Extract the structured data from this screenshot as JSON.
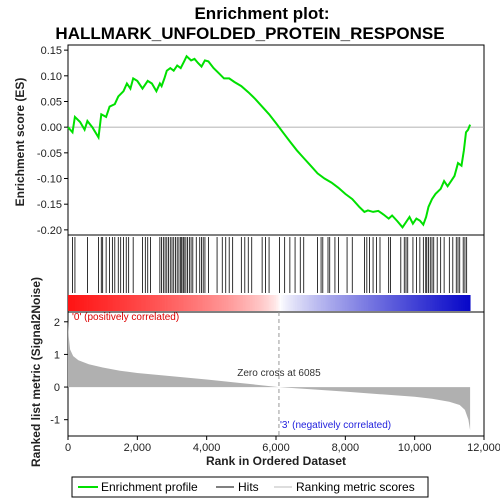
{
  "chart_data": {
    "type": "line",
    "title_line1": "Enrichment plot:",
    "title_line2": "HALLMARK_UNFOLDED_PROTEIN_RESPONSE",
    "es_ylabel": "Enrichment score (ES)",
    "rank_ylabel": "Ranked list metric (Signal2Noise)",
    "xlabel": "Rank in Ordered Dataset",
    "xlim": [
      0,
      12000
    ],
    "x_ticks": [
      0,
      2000,
      4000,
      6000,
      8000,
      10000,
      12000
    ],
    "x_tick_labels": [
      "0",
      "2,000",
      "4,000",
      "6,000",
      "8,000",
      "10,000",
      "12,000"
    ],
    "es_ylim": [
      -0.21,
      0.16
    ],
    "es_ticks": [
      0.15,
      0.1,
      0.05,
      0.0,
      -0.05,
      -0.1,
      -0.15,
      -0.2
    ],
    "es_tick_labels": [
      "0.15",
      "0.10",
      "0.05",
      "0.00",
      "-0.05",
      "-0.10",
      "-0.15",
      "-0.20"
    ],
    "rank_ylim": [
      -1.5,
      2.3
    ],
    "rank_ticks": [
      2,
      1,
      0,
      -1
    ],
    "rank_tick_labels": [
      "2",
      "1",
      "0",
      "-1"
    ],
    "n_genes": 11600,
    "zero_cross_rank": 6085,
    "zero_cross_label": "Zero cross at 6085",
    "pos_label": "'0' (positively correlated)",
    "neg_label": "'3' (negatively correlated)",
    "colors": {
      "es_line": "#00e000",
      "pos_text": "#dd0000",
      "neg_text": "#2222dd",
      "metric_fill": "#b0b0b0",
      "hit_line": "#000000"
    },
    "enrichment_profile": [
      [
        0,
        0.0
      ],
      [
        130,
        -0.01
      ],
      [
        200,
        0.02
      ],
      [
        350,
        0.01
      ],
      [
        480,
        -0.005
      ],
      [
        560,
        0.012
      ],
      [
        700,
        0.0
      ],
      [
        880,
        -0.02
      ],
      [
        960,
        0.025
      ],
      [
        1100,
        0.02
      ],
      [
        1200,
        0.04
      ],
      [
        1350,
        0.045
      ],
      [
        1450,
        0.06
      ],
      [
        1600,
        0.07
      ],
      [
        1700,
        0.085
      ],
      [
        1800,
        0.075
      ],
      [
        1880,
        0.095
      ],
      [
        2000,
        0.09
      ],
      [
        2150,
        0.075
      ],
      [
        2300,
        0.09
      ],
      [
        2420,
        0.085
      ],
      [
        2550,
        0.07
      ],
      [
        2650,
        0.085
      ],
      [
        2700,
        0.08
      ],
      [
        2780,
        0.095
      ],
      [
        2850,
        0.11
      ],
      [
        2950,
        0.115
      ],
      [
        3050,
        0.11
      ],
      [
        3150,
        0.12
      ],
      [
        3250,
        0.115
      ],
      [
        3350,
        0.128
      ],
      [
        3420,
        0.138
      ],
      [
        3550,
        0.13
      ],
      [
        3650,
        0.133
      ],
      [
        3750,
        0.125
      ],
      [
        3850,
        0.118
      ],
      [
        3950,
        0.13
      ],
      [
        4050,
        0.128
      ],
      [
        4200,
        0.115
      ],
      [
        4350,
        0.105
      ],
      [
        4500,
        0.095
      ],
      [
        4650,
        0.095
      ],
      [
        4800,
        0.088
      ],
      [
        5000,
        0.08
      ],
      [
        5200,
        0.068
      ],
      [
        5400,
        0.055
      ],
      [
        5600,
        0.04
      ],
      [
        5800,
        0.025
      ],
      [
        6000,
        0.008
      ],
      [
        6200,
        -0.01
      ],
      [
        6400,
        -0.028
      ],
      [
        6600,
        -0.045
      ],
      [
        6800,
        -0.06
      ],
      [
        7000,
        -0.075
      ],
      [
        7200,
        -0.09
      ],
      [
        7400,
        -0.1
      ],
      [
        7600,
        -0.108
      ],
      [
        7800,
        -0.118
      ],
      [
        8000,
        -0.13
      ],
      [
        8200,
        -0.14
      ],
      [
        8400,
        -0.155
      ],
      [
        8550,
        -0.165
      ],
      [
        8650,
        -0.162
      ],
      [
        8800,
        -0.165
      ],
      [
        8950,
        -0.163
      ],
      [
        9100,
        -0.17
      ],
      [
        9250,
        -0.178
      ],
      [
        9350,
        -0.172
      ],
      [
        9500,
        -0.183
      ],
      [
        9650,
        -0.195
      ],
      [
        9750,
        -0.185
      ],
      [
        9850,
        -0.175
      ],
      [
        9950,
        -0.188
      ],
      [
        10050,
        -0.178
      ],
      [
        10150,
        -0.182
      ],
      [
        10250,
        -0.19
      ],
      [
        10330,
        -0.175
      ],
      [
        10400,
        -0.155
      ],
      [
        10500,
        -0.14
      ],
      [
        10600,
        -0.13
      ],
      [
        10750,
        -0.12
      ],
      [
        10850,
        -0.105
      ],
      [
        10950,
        -0.115
      ],
      [
        11050,
        -0.105
      ],
      [
        11150,
        -0.095
      ],
      [
        11250,
        -0.07
      ],
      [
        11350,
        -0.075
      ],
      [
        11420,
        -0.045
      ],
      [
        11480,
        -0.01
      ],
      [
        11540,
        -0.005
      ],
      [
        11600,
        0.005
      ]
    ],
    "hit_ranks": [
      130,
      200,
      560,
      880,
      960,
      1000,
      1100,
      1200,
      1280,
      1350,
      1450,
      1520,
      1600,
      1680,
      1750,
      1880,
      2150,
      2230,
      2300,
      2380,
      2650,
      2700,
      2750,
      2800,
      2850,
      2900,
      2950,
      3000,
      3050,
      3100,
      3150,
      3200,
      3250,
      3280,
      3320,
      3350,
      3400,
      3450,
      3500,
      3550,
      3600,
      3700,
      3800,
      3850,
      3900,
      3950,
      4050,
      4300,
      4450,
      4550,
      4650,
      4750,
      5000,
      5100,
      5200,
      5300,
      5600,
      5700,
      5800,
      6100,
      6250,
      6400,
      6550,
      6700,
      6800,
      7200,
      7300,
      7350,
      7500,
      7550,
      7700,
      7800,
      8050,
      8200,
      8550,
      8620,
      8700,
      8800,
      8900,
      9000,
      9250,
      9300,
      9600,
      9700,
      9750,
      9800,
      9950,
      10050,
      10150,
      10250,
      10320,
      10350,
      10400,
      10450,
      10500,
      10550,
      10650,
      10750,
      10850,
      11000,
      11100,
      11200,
      11250,
      11300,
      11400,
      11450,
      11500
    ],
    "metric_curve": [
      [
        0,
        2.05
      ],
      [
        20,
        1.55
      ],
      [
        60,
        1.15
      ],
      [
        150,
        0.95
      ],
      [
        300,
        0.82
      ],
      [
        600,
        0.7
      ],
      [
        1000,
        0.6
      ],
      [
        1500,
        0.5
      ],
      [
        2000,
        0.43
      ],
      [
        3000,
        0.33
      ],
      [
        4000,
        0.23
      ],
      [
        5000,
        0.12
      ],
      [
        6085,
        0.0
      ],
      [
        7000,
        -0.07
      ],
      [
        8000,
        -0.14
      ],
      [
        9000,
        -0.22
      ],
      [
        10000,
        -0.3
      ],
      [
        10500,
        -0.36
      ],
      [
        11000,
        -0.45
      ],
      [
        11300,
        -0.55
      ],
      [
        11450,
        -0.7
      ],
      [
        11550,
        -1.0
      ],
      [
        11600,
        -1.32
      ]
    ],
    "legend": {
      "enrichment": "Enrichment profile",
      "hits": "Hits",
      "ranking": "Ranking metric scores"
    }
  }
}
